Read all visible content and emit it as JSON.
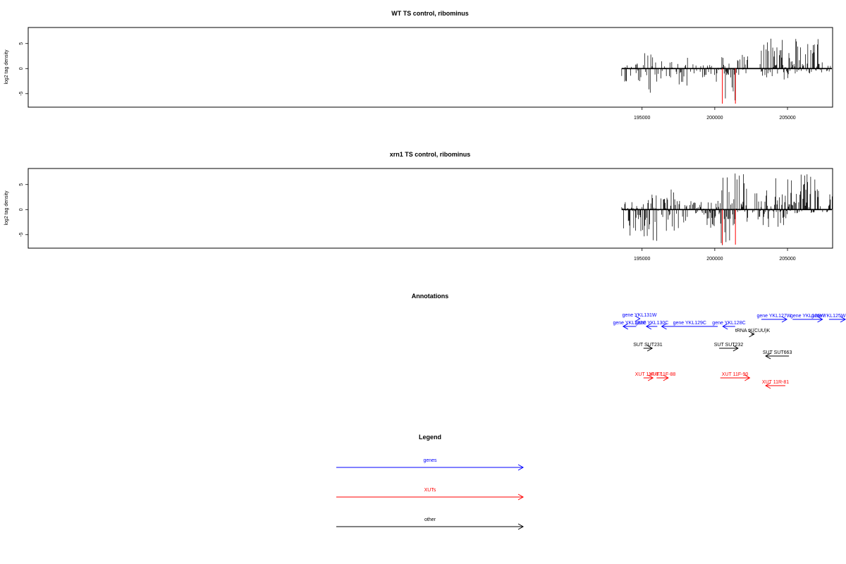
{
  "chart_data": [
    {
      "type": "bar",
      "title": "WT TS control, ribominus",
      "ylabel": "log2 tag density",
      "xlabel": "",
      "xlim": [
        152800,
        208100
      ],
      "ylim": [
        -7.7,
        8.2
      ],
      "x_ticks": [
        195000,
        200000,
        205000
      ],
      "x_tick_labels": [
        "195000",
        "200000",
        "205000"
      ],
      "y_ticks": [
        -5,
        0,
        5
      ],
      "y_tick_labels": [
        "-5",
        "0",
        "5"
      ],
      "data_range": [
        193600,
        208600
      ],
      "grid": false,
      "baseline_color": "#000000",
      "bar_color": "#000000",
      "marker_color": "#ff0000",
      "red_markers": [
        {
          "x": 200520,
          "y": -7.0
        },
        {
          "x": 201420,
          "y": -7.0
        }
      ],
      "regions": [
        {
          "from": 193600,
          "to": 195150,
          "min": -2.6,
          "max": 1.3,
          "density": 0.55
        },
        {
          "from": 195150,
          "to": 196100,
          "min": -5.5,
          "max": 3.2,
          "density": 0.75
        },
        {
          "from": 196300,
          "to": 197100,
          "min": -3.2,
          "max": 1.8,
          "density": 0.7
        },
        {
          "from": 197300,
          "to": 198400,
          "min": -3.5,
          "max": 2.2,
          "density": 0.7
        },
        {
          "from": 198500,
          "to": 200300,
          "min": -2.8,
          "max": 1.0,
          "density": 0.55
        },
        {
          "from": 200400,
          "to": 201400,
          "min": -6.5,
          "max": 2.4,
          "density": 0.9
        },
        {
          "from": 201400,
          "to": 202300,
          "min": -1.8,
          "max": 3.8,
          "density": 0.7
        },
        {
          "from": 202700,
          "to": 203200,
          "min": -1.2,
          "max": 2.5,
          "density": 0.5
        },
        {
          "from": 203200,
          "to": 205200,
          "min": -2.4,
          "max": 6.4,
          "density": 0.9
        },
        {
          "from": 205200,
          "to": 207400,
          "min": -1.0,
          "max": 6.6,
          "density": 0.95
        },
        {
          "from": 207700,
          "to": 208600,
          "min": -0.8,
          "max": 3.2,
          "density": 0.75
        }
      ]
    },
    {
      "type": "bar",
      "title": "xrn1 TS control, ribominus",
      "ylabel": "log2 tag density",
      "xlabel": "",
      "xlim": [
        152800,
        208100
      ],
      "ylim": [
        -7.7,
        8.2
      ],
      "x_ticks": [
        195000,
        200000,
        205000
      ],
      "x_tick_labels": [
        "195000",
        "200000",
        "205000"
      ],
      "y_ticks": [
        -5,
        0,
        5
      ],
      "y_tick_labels": [
        "-5",
        "0",
        "5"
      ],
      "data_range": [
        193600,
        208600
      ],
      "grid": false,
      "baseline_color": "#000000",
      "bar_color": "#000000",
      "marker_color": "#ff0000",
      "red_markers": [
        {
          "x": 200520,
          "y": -7.0
        },
        {
          "x": 201420,
          "y": -7.0
        }
      ],
      "regions": [
        {
          "from": 193600,
          "to": 195100,
          "min": -5.2,
          "max": 1.6,
          "density": 0.95
        },
        {
          "from": 195150,
          "to": 196100,
          "min": -6.5,
          "max": 3.0,
          "density": 1.0
        },
        {
          "from": 196300,
          "to": 197600,
          "min": -4.5,
          "max": 4.0,
          "density": 0.9
        },
        {
          "from": 197700,
          "to": 200400,
          "min": -5.0,
          "max": 1.8,
          "density": 0.9
        },
        {
          "from": 200400,
          "to": 201400,
          "min": -7.2,
          "max": 6.5,
          "density": 1.0
        },
        {
          "from": 201400,
          "to": 202300,
          "min": -3.2,
          "max": 7.5,
          "density": 0.9
        },
        {
          "from": 202600,
          "to": 203200,
          "min": -2.2,
          "max": 3.5,
          "density": 0.7
        },
        {
          "from": 203200,
          "to": 205100,
          "min": -3.8,
          "max": 6.8,
          "density": 0.95
        },
        {
          "from": 205150,
          "to": 207200,
          "min": -0.8,
          "max": 7.5,
          "density": 1.0
        },
        {
          "from": 207250,
          "to": 207600,
          "min": -0.5,
          "max": 1.2,
          "density": 0.5
        },
        {
          "from": 207700,
          "to": 208600,
          "min": -0.6,
          "max": 5.2,
          "density": 1.0
        }
      ]
    }
  ],
  "annotations": {
    "title": "Annotations",
    "features": [
      {
        "label": "gene YKL131W",
        "color": "#0000ff",
        "start": 194800,
        "end": 194850,
        "dir": "right"
      },
      {
        "label": "gene YKL132C",
        "color": "#0000ff",
        "start": 193700,
        "end": 194600,
        "dir": "left"
      },
      {
        "label": "gene YKL130C",
        "color": "#0000ff",
        "start": 195300,
        "end": 196050,
        "dir": "left"
      },
      {
        "label": "gene YKL129C",
        "color": "#0000ff",
        "start": 196350,
        "end": 200200,
        "dir": "left"
      },
      {
        "label": "gene YKL128C",
        "color": "#0000ff",
        "start": 200550,
        "end": 201400,
        "dir": "left"
      },
      {
        "label": "tRNA tK(CUU)K",
        "color": "#000000",
        "start": 202500,
        "end": 202700,
        "dir": "right"
      },
      {
        "label": "gene YKL127W",
        "color": "#0000ff",
        "start": 203200,
        "end": 204950,
        "dir": "right"
      },
      {
        "label": "gene YKL126W",
        "color": "#0000ff",
        "start": 205350,
        "end": 207400,
        "dir": "right"
      },
      {
        "label": "gene YKL125W",
        "color": "#0000ff",
        "start": 207850,
        "end": 209200,
        "dir": "right"
      },
      {
        "label": "SUT SUT231",
        "color": "#000000",
        "start": 195100,
        "end": 195700,
        "dir": "right"
      },
      {
        "label": "SUT SUT232",
        "color": "#000000",
        "start": 200300,
        "end": 201600,
        "dir": "right"
      },
      {
        "label": "SUT SUT663",
        "color": "#000000",
        "start": 203500,
        "end": 205100,
        "dir": "left"
      },
      {
        "label": "XUT 11F-87",
        "color": "#ff0000",
        "start": 195100,
        "end": 195750,
        "dir": "right"
      },
      {
        "label": "XUT 11F-88",
        "color": "#ff0000",
        "start": 196000,
        "end": 196800,
        "dir": "right"
      },
      {
        "label": "XUT 11F-90",
        "color": "#ff0000",
        "start": 200380,
        "end": 202400,
        "dir": "right"
      },
      {
        "label": "XUT 11R-81",
        "color": "#ff0000",
        "start": 203500,
        "end": 204850,
        "dir": "left"
      }
    ]
  },
  "legend": {
    "title": "Legend",
    "entries": [
      {
        "label": "genes",
        "color": "#0000ff"
      },
      {
        "label": "XUTs",
        "color": "#ff0000"
      },
      {
        "label": "other",
        "color": "#000000"
      }
    ]
  }
}
